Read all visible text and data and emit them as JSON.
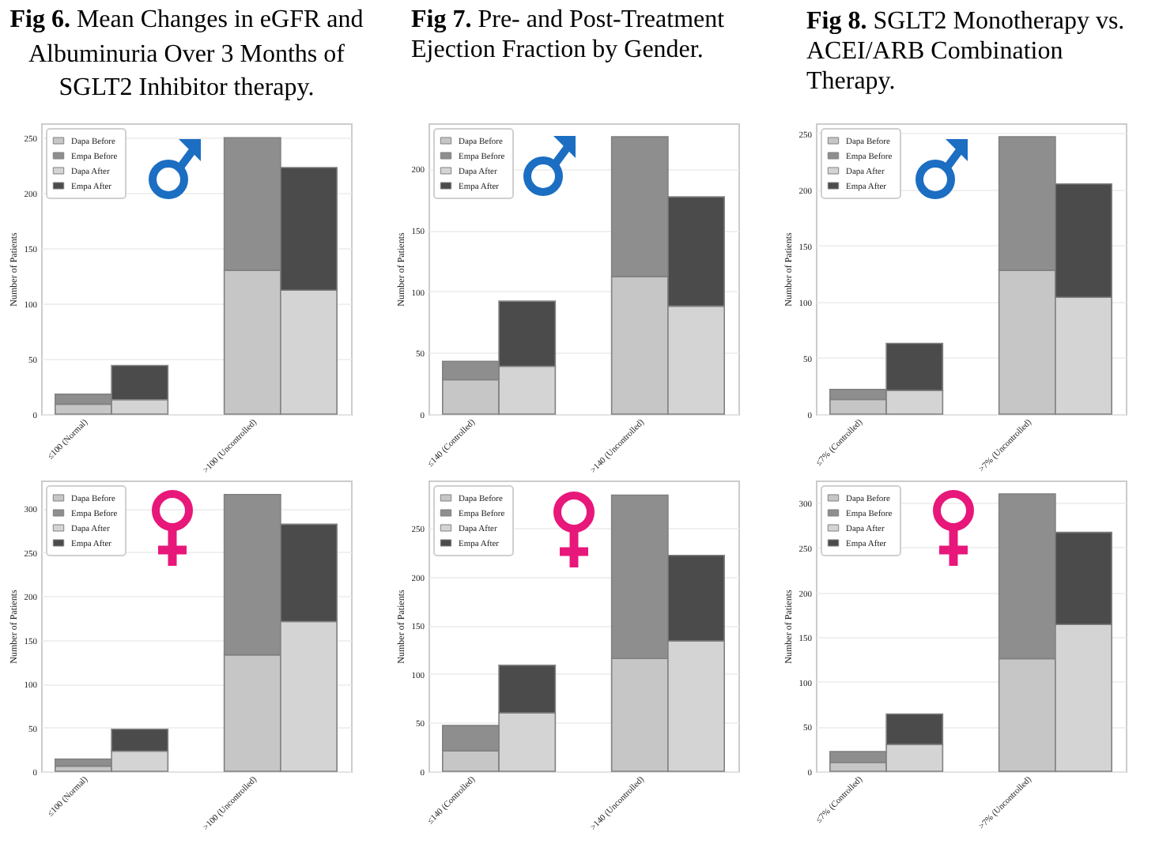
{
  "chart_data": [
    {
      "type": "bar",
      "title": "Fig 6. Mean Changes in eGFR and Albuminuria Over 3 Months of SGLT2 Inhibitor therapy.",
      "ylabel": "Number of Patients",
      "stacked": true,
      "legend": "top left",
      "grid": "y",
      "categories": [
        "≤100 (Normal)",
        null,
        null,
        ">100 (Uncontrolled)",
        null
      ],
      "ylim": [
        0,
        263
      ],
      "yticks": [
        0,
        50,
        100,
        150,
        200,
        250
      ],
      "series": [
        {
          "name": "Dapa Before",
          "color": "#c6c6c6",
          "values": [
            9,
            null,
            null,
            130,
            null
          ]
        },
        {
          "name": "Empa Before",
          "color": "#8e8e8e",
          "values": [
            9,
            null,
            null,
            120,
            null
          ]
        },
        {
          "name": "Dapa After",
          "color": "#d4d4d4",
          "values": [
            null,
            13,
            null,
            null,
            112
          ]
        },
        {
          "name": "Empa After",
          "color": "#4b4b4b",
          "values": [
            null,
            31,
            null,
            null,
            111
          ]
        }
      ]
    },
    {
      "type": "bar",
      "title": "Fig 7. Pre- and Post-Treatment Ejection Fraction by Gender.",
      "ylabel": "Number of Patients",
      "stacked": true,
      "legend": "top left",
      "grid": "y",
      "categories": [
        "≤140 (Controlled)",
        null,
        null,
        ">140 (Uncontrolled)",
        null
      ],
      "ylim": [
        0,
        237
      ],
      "yticks": [
        0,
        50,
        100,
        150,
        200
      ],
      "series": [
        {
          "name": "Dapa Before",
          "color": "#c6c6c6",
          "values": [
            28,
            null,
            null,
            112,
            null
          ]
        },
        {
          "name": "Empa Before",
          "color": "#8e8e8e",
          "values": [
            15,
            null,
            null,
            114,
            null
          ]
        },
        {
          "name": "Dapa After",
          "color": "#d4d4d4",
          "values": [
            null,
            39,
            null,
            null,
            88
          ]
        },
        {
          "name": "Empa After",
          "color": "#4b4b4b",
          "values": [
            null,
            53,
            null,
            null,
            89
          ]
        }
      ]
    },
    {
      "type": "bar",
      "title": "Fig 8. SGLT2 Monotherapy vs. ACEI/ARB Combination Therapy.",
      "ylabel": "Number of Patients",
      "stacked": true,
      "legend": "top left",
      "grid": "y",
      "categories": [
        "≤7% (Controlled)",
        null,
        null,
        ">7% (Uncontrolled)",
        null
      ],
      "ylim": [
        0,
        259
      ],
      "yticks": [
        0,
        50,
        100,
        150,
        200,
        250
      ],
      "series": [
        {
          "name": "Dapa Before",
          "color": "#c6c6c6",
          "values": [
            13,
            null,
            null,
            128,
            null
          ]
        },
        {
          "name": "Empa Before",
          "color": "#8e8e8e",
          "values": [
            9,
            null,
            null,
            119,
            null
          ]
        },
        {
          "name": "Dapa After",
          "color": "#d4d4d4",
          "values": [
            null,
            21,
            null,
            null,
            104
          ]
        },
        {
          "name": "Empa After",
          "color": "#4b4b4b",
          "values": [
            null,
            42,
            null,
            null,
            101
          ]
        }
      ]
    },
    {
      "type": "bar",
      "ylabel": "Number of Patients",
      "stacked": true,
      "legend": "top left",
      "grid": "y",
      "categories": [
        "≤100 (Normal)",
        null,
        null,
        ">100 (Uncontrolled)",
        null
      ],
      "ylim": [
        0,
        332
      ],
      "yticks": [
        0,
        50,
        100,
        150,
        200,
        250,
        300
      ],
      "series": [
        {
          "name": "Dapa Before",
          "color": "#c6c6c6",
          "values": [
            6,
            null,
            null,
            133,
            null
          ]
        },
        {
          "name": "Empa Before",
          "color": "#8e8e8e",
          "values": [
            8,
            null,
            null,
            183,
            null
          ]
        },
        {
          "name": "Dapa After",
          "color": "#d4d4d4",
          "values": [
            null,
            23,
            null,
            null,
            171
          ]
        },
        {
          "name": "Empa After",
          "color": "#4b4b4b",
          "values": [
            null,
            25,
            null,
            null,
            111
          ]
        }
      ]
    },
    {
      "type": "bar",
      "ylabel": "Number of Patients",
      "stacked": true,
      "legend": "top left",
      "grid": "y",
      "categories": [
        "≤140 (Controlled)",
        null,
        null,
        ">140 (Uncontrolled)",
        null
      ],
      "ylim": [
        0,
        299
      ],
      "yticks": [
        0,
        50,
        100,
        150,
        200,
        250
      ],
      "series": [
        {
          "name": "Dapa Before",
          "color": "#c6c6c6",
          "values": [
            21,
            null,
            null,
            116,
            null
          ]
        },
        {
          "name": "Empa Before",
          "color": "#8e8e8e",
          "values": [
            26,
            null,
            null,
            168,
            null
          ]
        },
        {
          "name": "Dapa After",
          "color": "#d4d4d4",
          "values": [
            null,
            60,
            null,
            null,
            134
          ]
        },
        {
          "name": "Empa After",
          "color": "#4b4b4b",
          "values": [
            null,
            49,
            null,
            null,
            88
          ]
        }
      ]
    },
    {
      "type": "bar",
      "ylabel": "Number of Patients",
      "stacked": true,
      "legend": "top left",
      "grid": "y",
      "categories": [
        "≤7% (Controlled)",
        null,
        null,
        ">7% (Uncontrolled)",
        null
      ],
      "ylim": [
        0,
        325
      ],
      "yticks": [
        0,
        50,
        100,
        150,
        200,
        250,
        300
      ],
      "series": [
        {
          "name": "Dapa Before",
          "color": "#c6c6c6",
          "values": [
            10,
            null,
            null,
            126,
            null
          ]
        },
        {
          "name": "Empa Before",
          "color": "#8e8e8e",
          "values": [
            12,
            null,
            null,
            184,
            null
          ]
        },
        {
          "name": "Dapa After",
          "color": "#d4d4d4",
          "values": [
            null,
            30,
            null,
            null,
            164
          ]
        },
        {
          "name": "Empa After",
          "color": "#4b4b4b",
          "values": [
            null,
            34,
            null,
            null,
            103
          ]
        }
      ]
    }
  ]
}
